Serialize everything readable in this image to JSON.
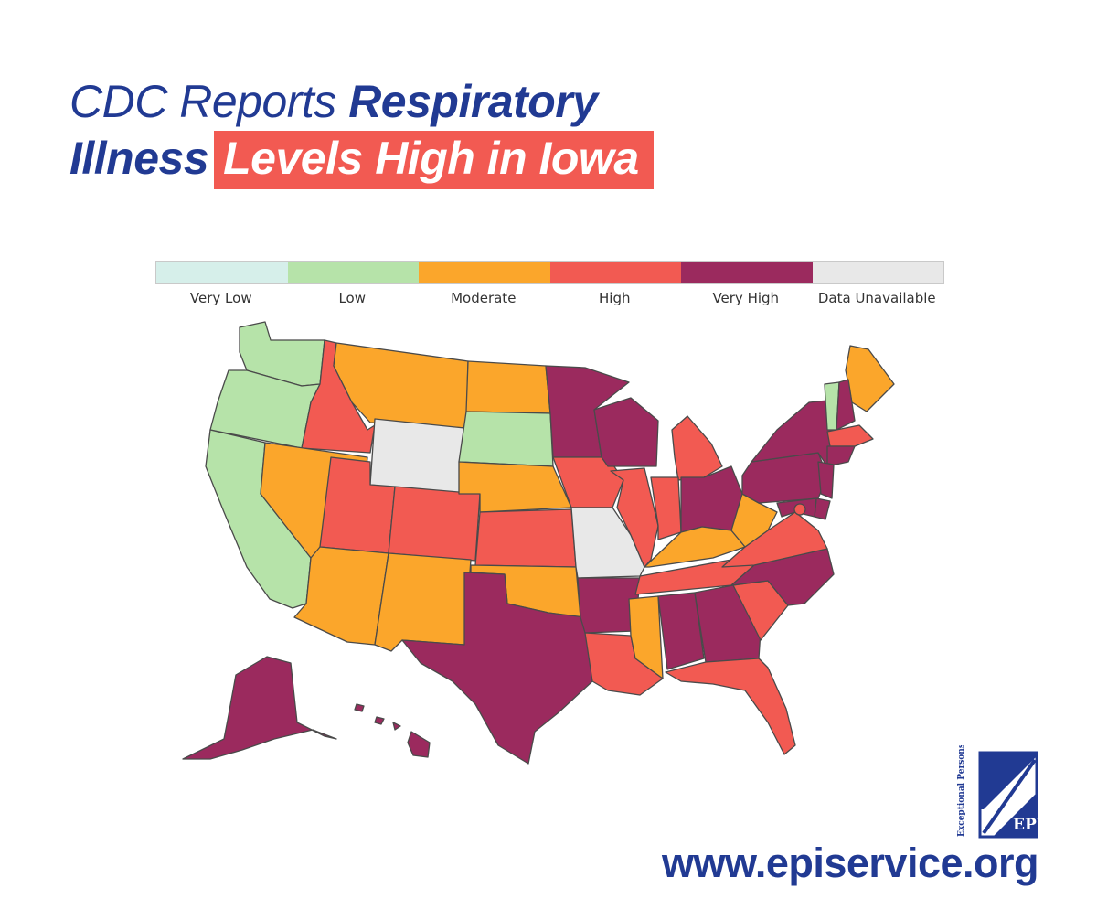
{
  "headline": {
    "part1": "CDC Reports ",
    "part2": "Respiratory",
    "part3": "Illness",
    "highlight": "Levels High in Iowa"
  },
  "legend": [
    {
      "label": "Very Low",
      "color": "#d6efea"
    },
    {
      "label": "Low",
      "color": "#b6e3a9"
    },
    {
      "label": "Moderate",
      "color": "#fba62b"
    },
    {
      "label": "High",
      "color": "#f25a52"
    },
    {
      "label": "Very High",
      "color": "#9b2a5e"
    },
    {
      "label": "Data Unavailable",
      "color": "#e8e8e8"
    }
  ],
  "states": {
    "WA": "Low",
    "OR": "Low",
    "CA": "Low",
    "ID": "High",
    "NV": "Moderate",
    "MT": "Moderate",
    "WY": "Data Unavailable",
    "UT": "High",
    "AZ": "Moderate",
    "CO": "High",
    "NM": "Moderate",
    "ND": "Moderate",
    "SD": "Low",
    "NE": "Moderate",
    "KS": "High",
    "OK": "Moderate",
    "TX": "Very High",
    "MN": "Very High",
    "IA": "High",
    "MO": "Data Unavailable",
    "AR": "Very High",
    "LA": "High",
    "WI": "Very High",
    "IL": "High",
    "MI": "High",
    "IN": "High",
    "OH": "Very High",
    "KY": "Moderate",
    "TN": "High",
    "MS": "Moderate",
    "AL": "Very High",
    "GA": "Very High",
    "FL": "High",
    "SC": "High",
    "NC": "Very High",
    "VA": "High",
    "WV": "Moderate",
    "PA": "Very High",
    "NY": "Very High",
    "ME": "Moderate",
    "VT": "Low",
    "NH": "Very High",
    "MA": "High",
    "CT": "Very High",
    "NJ": "Very High",
    "DE": "Very High",
    "MD": "Very High",
    "DC": "High",
    "AK": "Very High",
    "HI": "Very High"
  },
  "logo": {
    "text": "EPI",
    "side_text": "Exceptional Persons, Inc."
  },
  "website": "www.episervice.org"
}
